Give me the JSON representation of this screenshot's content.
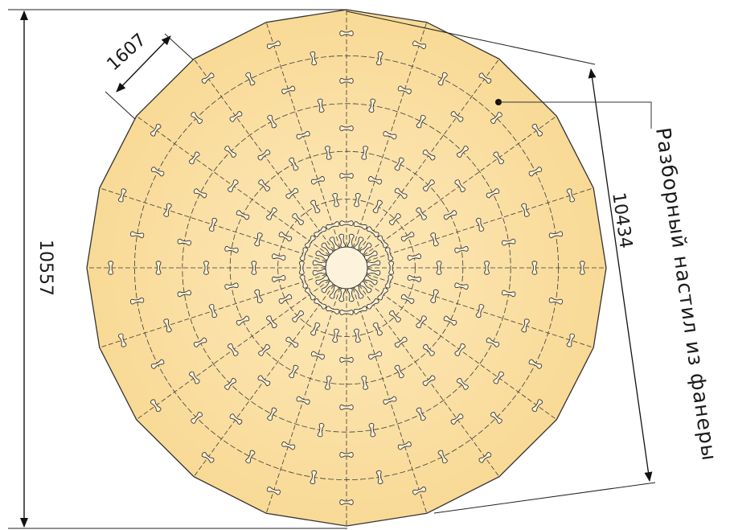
{
  "drawing": {
    "segments": 20,
    "rings": 5,
    "fill_color": "#fbe1a3",
    "line_color": "#3a3a3a"
  },
  "dimensions": {
    "height": "10557",
    "segment_width": "1607",
    "diameter": "10434"
  },
  "callout": {
    "label": "Разборный настил из фанеры"
  }
}
